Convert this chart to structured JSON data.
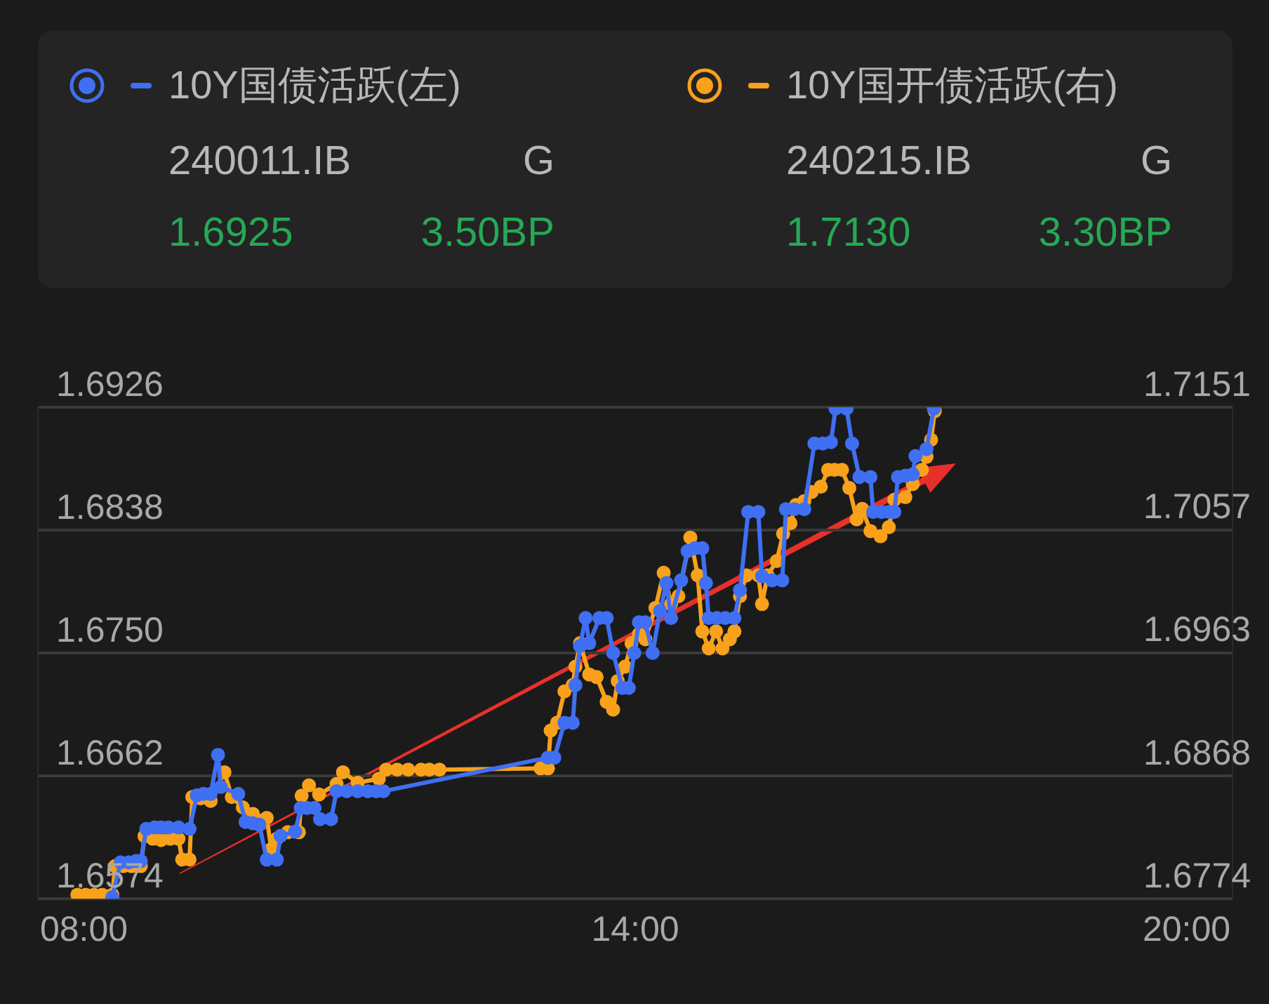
{
  "chart_data": {
    "type": "line",
    "legend": "top",
    "grid": "y",
    "marker": "circle",
    "annotations": [
      "240011.IB",
      "G",
      "1.6925",
      "3.50BP",
      "240215.IB",
      "G",
      "1.7130",
      "3.30BP"
    ],
    "xlim": [
      7.5,
      20.5
    ],
    "xticks": [
      {
        "value": 8,
        "label": "08:00"
      },
      {
        "value": 14,
        "label": "14:00"
      },
      {
        "value": 20,
        "label": "20:00"
      }
    ],
    "ylim": [
      1.6574,
      1.6926
    ],
    "yticks": [
      1.6574,
      1.6662,
      {
        "value": 1.675,
        "label": "1.6750"
      },
      1.6838,
      1.6926
    ],
    "y2lim": [
      1.6774,
      1.7151
    ],
    "y2ticks": [
      1.6774,
      1.6868,
      1.6963,
      1.7057,
      1.7151
    ],
    "series": [
      {
        "name": "10Y国债活跃(左)",
        "color": "#3f6ff2",
        "x": [
          8.31,
          8.4,
          8.49,
          8.57,
          8.62,
          8.68,
          8.77,
          8.84,
          8.92,
          9.03,
          9.15,
          9.23,
          9.3,
          9.38,
          9.46,
          9.49,
          9.68,
          9.76,
          9.84,
          9.91,
          9.99,
          10.1,
          10.14,
          10.3,
          10.36,
          10.43,
          10.51,
          10.57,
          10.69,
          10.75,
          10.86,
          10.98,
          11.09,
          11.18,
          11.26,
          13.05,
          13.12,
          13.23,
          13.32,
          13.35,
          13.4,
          13.46,
          13.5,
          13.61,
          13.69,
          13.76,
          13.86,
          13.93,
          13.99,
          14.04,
          14.11,
          14.19,
          14.27,
          14.34,
          14.39,
          14.5,
          14.57,
          14.65,
          14.73,
          14.77,
          14.8,
          14.89,
          14.98,
          15.08,
          15.14,
          15.23,
          15.34,
          15.38,
          15.49,
          15.6,
          15.64,
          15.73,
          15.84,
          15.95,
          16.04,
          16.13,
          16.18,
          16.3,
          16.36,
          16.44,
          16.56,
          16.59,
          16.68,
          16.76,
          16.82,
          16.86,
          16.94,
          17.02,
          17.05,
          17.17,
          17.25
        ],
        "values": [
          1.6575,
          1.66,
          1.66,
          1.6601,
          1.6601,
          1.6624,
          1.6625,
          1.6625,
          1.6625,
          1.6625,
          1.6624,
          1.6648,
          1.6649,
          1.6649,
          1.6677,
          1.6654,
          1.6649,
          1.6629,
          1.6628,
          1.6627,
          1.6602,
          1.6602,
          1.6619,
          1.6622,
          1.6639,
          1.6639,
          1.6639,
          1.6631,
          1.6631,
          1.6651,
          1.6651,
          1.6651,
          1.6651,
          1.6651,
          1.6651,
          1.6675,
          1.6675,
          1.67,
          1.67,
          1.6727,
          1.6755,
          1.6775,
          1.6757,
          1.6775,
          1.6775,
          1.675,
          1.6725,
          1.6725,
          1.675,
          1.6772,
          1.6772,
          1.675,
          1.678,
          1.68,
          1.6775,
          1.6802,
          1.6823,
          1.6825,
          1.6825,
          1.68,
          1.6775,
          1.6775,
          1.6775,
          1.6775,
          1.6795,
          1.6851,
          1.6851,
          1.6805,
          1.6802,
          1.6802,
          1.6853,
          1.6853,
          1.6853,
          1.69,
          1.69,
          1.6901,
          1.6925,
          1.6925,
          1.69,
          1.6876,
          1.6876,
          1.6851,
          1.6851,
          1.6851,
          1.6851,
          1.6876,
          1.6877,
          1.6878,
          1.6891,
          1.6896,
          1.6925
        ]
      },
      {
        "name": "10Y国开债活跃(右)",
        "color": "#f9a11b",
        "axis": "y2",
        "x": [
          7.93,
          8.02,
          8.11,
          8.2,
          8.31,
          8.34,
          8.43,
          8.52,
          8.62,
          8.66,
          8.75,
          8.84,
          8.94,
          9.03,
          9.07,
          9.15,
          9.18,
          9.27,
          9.38,
          9.53,
          9.61,
          9.73,
          9.84,
          9.99,
          10.04,
          10.1,
          10.22,
          10.34,
          10.37,
          10.45,
          10.56,
          10.75,
          10.82,
          10.98,
          11.21,
          11.29,
          11.41,
          11.53,
          11.67,
          11.76,
          11.87,
          12.97,
          13.05,
          13.08,
          13.15,
          13.23,
          13.32,
          13.35,
          13.4,
          13.5,
          13.58,
          13.69,
          13.76,
          13.81,
          13.89,
          13.96,
          14.04,
          14.11,
          14.22,
          14.31,
          14.39,
          14.47,
          14.6,
          14.68,
          14.73,
          14.8,
          14.88,
          14.95,
          15.03,
          15.08,
          15.14,
          15.21,
          15.34,
          15.38,
          15.44,
          15.54,
          15.61,
          15.69,
          15.75,
          15.84,
          15.92,
          16.02,
          16.1,
          16.17,
          16.25,
          16.33,
          16.41,
          16.47,
          16.56,
          16.67,
          16.76,
          16.82,
          16.94,
          17.02,
          17.12,
          17.17,
          17.22,
          17.26
        ],
        "values": [
          1.6777,
          1.6777,
          1.6777,
          1.6777,
          1.6777,
          1.6799,
          1.6799,
          1.6799,
          1.6799,
          1.6822,
          1.682,
          1.6819,
          1.682,
          1.682,
          1.6804,
          1.6804,
          1.6852,
          1.6851,
          1.6849,
          1.6871,
          1.6852,
          1.6844,
          1.6839,
          1.6836,
          1.6812,
          1.682,
          1.6825,
          1.6825,
          1.6853,
          1.6861,
          1.6854,
          1.6862,
          1.6871,
          1.6863,
          1.6866,
          1.6873,
          1.6873,
          1.6873,
          1.6873,
          1.6873,
          1.6873,
          1.6874,
          1.6874,
          1.6903,
          1.6909,
          1.6933,
          1.6938,
          1.6952,
          1.697,
          1.6946,
          1.6944,
          1.6925,
          1.6919,
          1.6941,
          1.6952,
          1.697,
          1.6977,
          1.6973,
          1.6997,
          1.7024,
          1.7,
          1.7006,
          1.7051,
          1.7022,
          1.6979,
          1.6966,
          1.6979,
          1.6966,
          1.6973,
          1.6979,
          1.7006,
          1.7022,
          1.7022,
          1.7,
          1.7022,
          1.7033,
          1.7054,
          1.7062,
          1.7076,
          1.7079,
          1.7086,
          1.709,
          1.7103,
          1.7103,
          1.7103,
          1.7089,
          1.7065,
          1.7073,
          1.7056,
          1.7052,
          1.7059,
          1.708,
          1.7082,
          1.7092,
          1.7103,
          1.7113,
          1.7126,
          1.7148
        ]
      }
    ]
  }
}
